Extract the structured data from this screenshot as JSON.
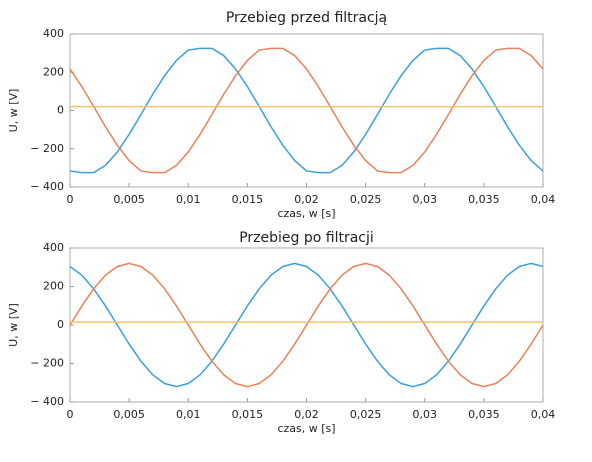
{
  "chart_data": [
    {
      "type": "line",
      "title": "Przebieg przed filtracją",
      "xlabel": "czas, w [s]",
      "ylabel": "U, w [V]",
      "x": [
        0,
        0.001,
        0.002,
        0.003,
        0.004,
        0.005,
        0.006,
        0.007,
        0.008,
        0.009,
        0.01,
        0.011,
        0.012,
        0.013,
        0.014,
        0.015,
        0.016,
        0.017,
        0.018,
        0.019,
        0.02,
        0.021,
        0.022,
        0.023,
        0.024,
        0.025,
        0.026,
        0.027,
        0.028,
        0.029,
        0.03,
        0.031,
        0.032,
        0.033,
        0.034,
        0.035,
        0.036,
        0.037,
        0.038,
        0.039,
        0.04
      ],
      "series": [
        {
          "color": "#3d9fd6",
          "values": [
            -316,
            -325,
            -325,
            -287,
            -217,
            -125,
            -21,
            85,
            182,
            262,
            316,
            325,
            325,
            287,
            217,
            125,
            21,
            -85,
            -182,
            -262,
            -316,
            -325,
            -325,
            -287,
            -217,
            -125,
            -21,
            85,
            182,
            262,
            316,
            325,
            325,
            287,
            217,
            125,
            21,
            -85,
            -182,
            -262,
            -316
          ]
        },
        {
          "color": "#e8825a",
          "values": [
            217,
            125,
            21,
            -85,
            -182,
            -262,
            -316,
            -325,
            -325,
            -287,
            -217,
            -125,
            -21,
            85,
            182,
            262,
            316,
            325,
            325,
            287,
            217,
            125,
            21,
            -85,
            -182,
            -262,
            -316,
            -325,
            -325,
            -287,
            -217,
            -125,
            -21,
            85,
            182,
            262,
            316,
            325,
            325,
            287,
            217
          ]
        },
        {
          "color": "#f2c46d",
          "values": [
            20,
            20,
            20,
            20,
            20,
            20,
            20,
            20,
            20,
            20,
            20,
            20,
            20,
            20,
            20,
            20,
            20,
            20,
            20,
            20,
            20,
            20,
            20,
            20,
            20,
            20,
            20,
            20,
            20,
            20,
            20,
            20,
            20,
            20,
            20,
            20,
            20,
            20,
            20,
            20,
            20
          ]
        }
      ],
      "xlim": [
        0,
        0.04
      ],
      "ylim": [
        -400,
        400
      ],
      "xticks": [
        0,
        {
          "value": 0.005,
          "label": "0,005"
        },
        {
          "value": 0.01,
          "label": "0,01"
        },
        {
          "value": 0.015,
          "label": "0,015"
        },
        {
          "value": 0.02,
          "label": "0,02"
        },
        {
          "value": 0.025,
          "label": "0,025"
        },
        {
          "value": 0.03,
          "label": "0,03"
        },
        {
          "value": 0.035,
          "label": "0,035"
        },
        {
          "value": 0.04,
          "label": "0,04"
        }
      ],
      "yticks": [
        {
          "value": -400,
          "label": "− 400"
        },
        {
          "value": -200,
          "label": "− 200"
        },
        0,
        200,
        400
      ]
    },
    {
      "type": "line",
      "title": "Przebieg po filtracji",
      "xlabel": "czas, w [s]",
      "ylabel": "U, w [V]",
      "x": [
        0,
        0.001,
        0.002,
        0.003,
        0.004,
        0.005,
        0.006,
        0.007,
        0.008,
        0.009,
        0.01,
        0.011,
        0.012,
        0.013,
        0.014,
        0.015,
        0.016,
        0.017,
        0.018,
        0.019,
        0.02,
        0.021,
        0.022,
        0.023,
        0.024,
        0.025,
        0.026,
        0.027,
        0.028,
        0.029,
        0.03,
        0.031,
        0.032,
        0.033,
        0.034,
        0.035,
        0.036,
        0.037,
        0.038,
        0.039,
        0.04
      ],
      "series": [
        {
          "color": "#3d9fd6",
          "values": [
            304,
            259,
            188,
            99,
            0,
            -99,
            -188,
            -259,
            -304,
            -320,
            -304,
            -259,
            -188,
            -99,
            0,
            99,
            188,
            259,
            304,
            320,
            304,
            259,
            188,
            99,
            0,
            -99,
            -188,
            -259,
            -304,
            -320,
            -304,
            -259,
            -188,
            -99,
            0,
            99,
            188,
            259,
            304,
            320,
            304
          ]
        },
        {
          "color": "#e8825a",
          "values": [
            0,
            99,
            188,
            259,
            304,
            320,
            304,
            259,
            188,
            99,
            0,
            -99,
            -188,
            -259,
            -304,
            -320,
            -304,
            -259,
            -188,
            -99,
            0,
            99,
            188,
            259,
            304,
            320,
            304,
            259,
            188,
            99,
            0,
            -99,
            -188,
            -259,
            -304,
            -320,
            -304,
            -259,
            -188,
            -99,
            0
          ]
        },
        {
          "color": "#f2c46d",
          "values": [
            15,
            15,
            15,
            15,
            15,
            15,
            15,
            15,
            15,
            15,
            15,
            15,
            15,
            15,
            15,
            15,
            15,
            15,
            15,
            15,
            15,
            15,
            15,
            15,
            15,
            15,
            15,
            15,
            15,
            15,
            15,
            15,
            15,
            15,
            15,
            15,
            15,
            15,
            15,
            15,
            15
          ]
        }
      ],
      "xlim": [
        0,
        0.04
      ],
      "ylim": [
        -400,
        400
      ],
      "xticks": [
        0,
        {
          "value": 0.005,
          "label": "0,005"
        },
        {
          "value": 0.01,
          "label": "0,01"
        },
        {
          "value": 0.015,
          "label": "0,015"
        },
        {
          "value": 0.02,
          "label": "0,02"
        },
        {
          "value": 0.025,
          "label": "0,025"
        },
        {
          "value": 0.03,
          "label": "0,03"
        },
        {
          "value": 0.035,
          "label": "0,035"
        },
        {
          "value": 0.04,
          "label": "0,04"
        }
      ],
      "yticks": [
        {
          "value": -400,
          "label": "− 400"
        },
        {
          "value": -200,
          "label": "− 200"
        },
        0,
        200,
        400
      ]
    }
  ]
}
